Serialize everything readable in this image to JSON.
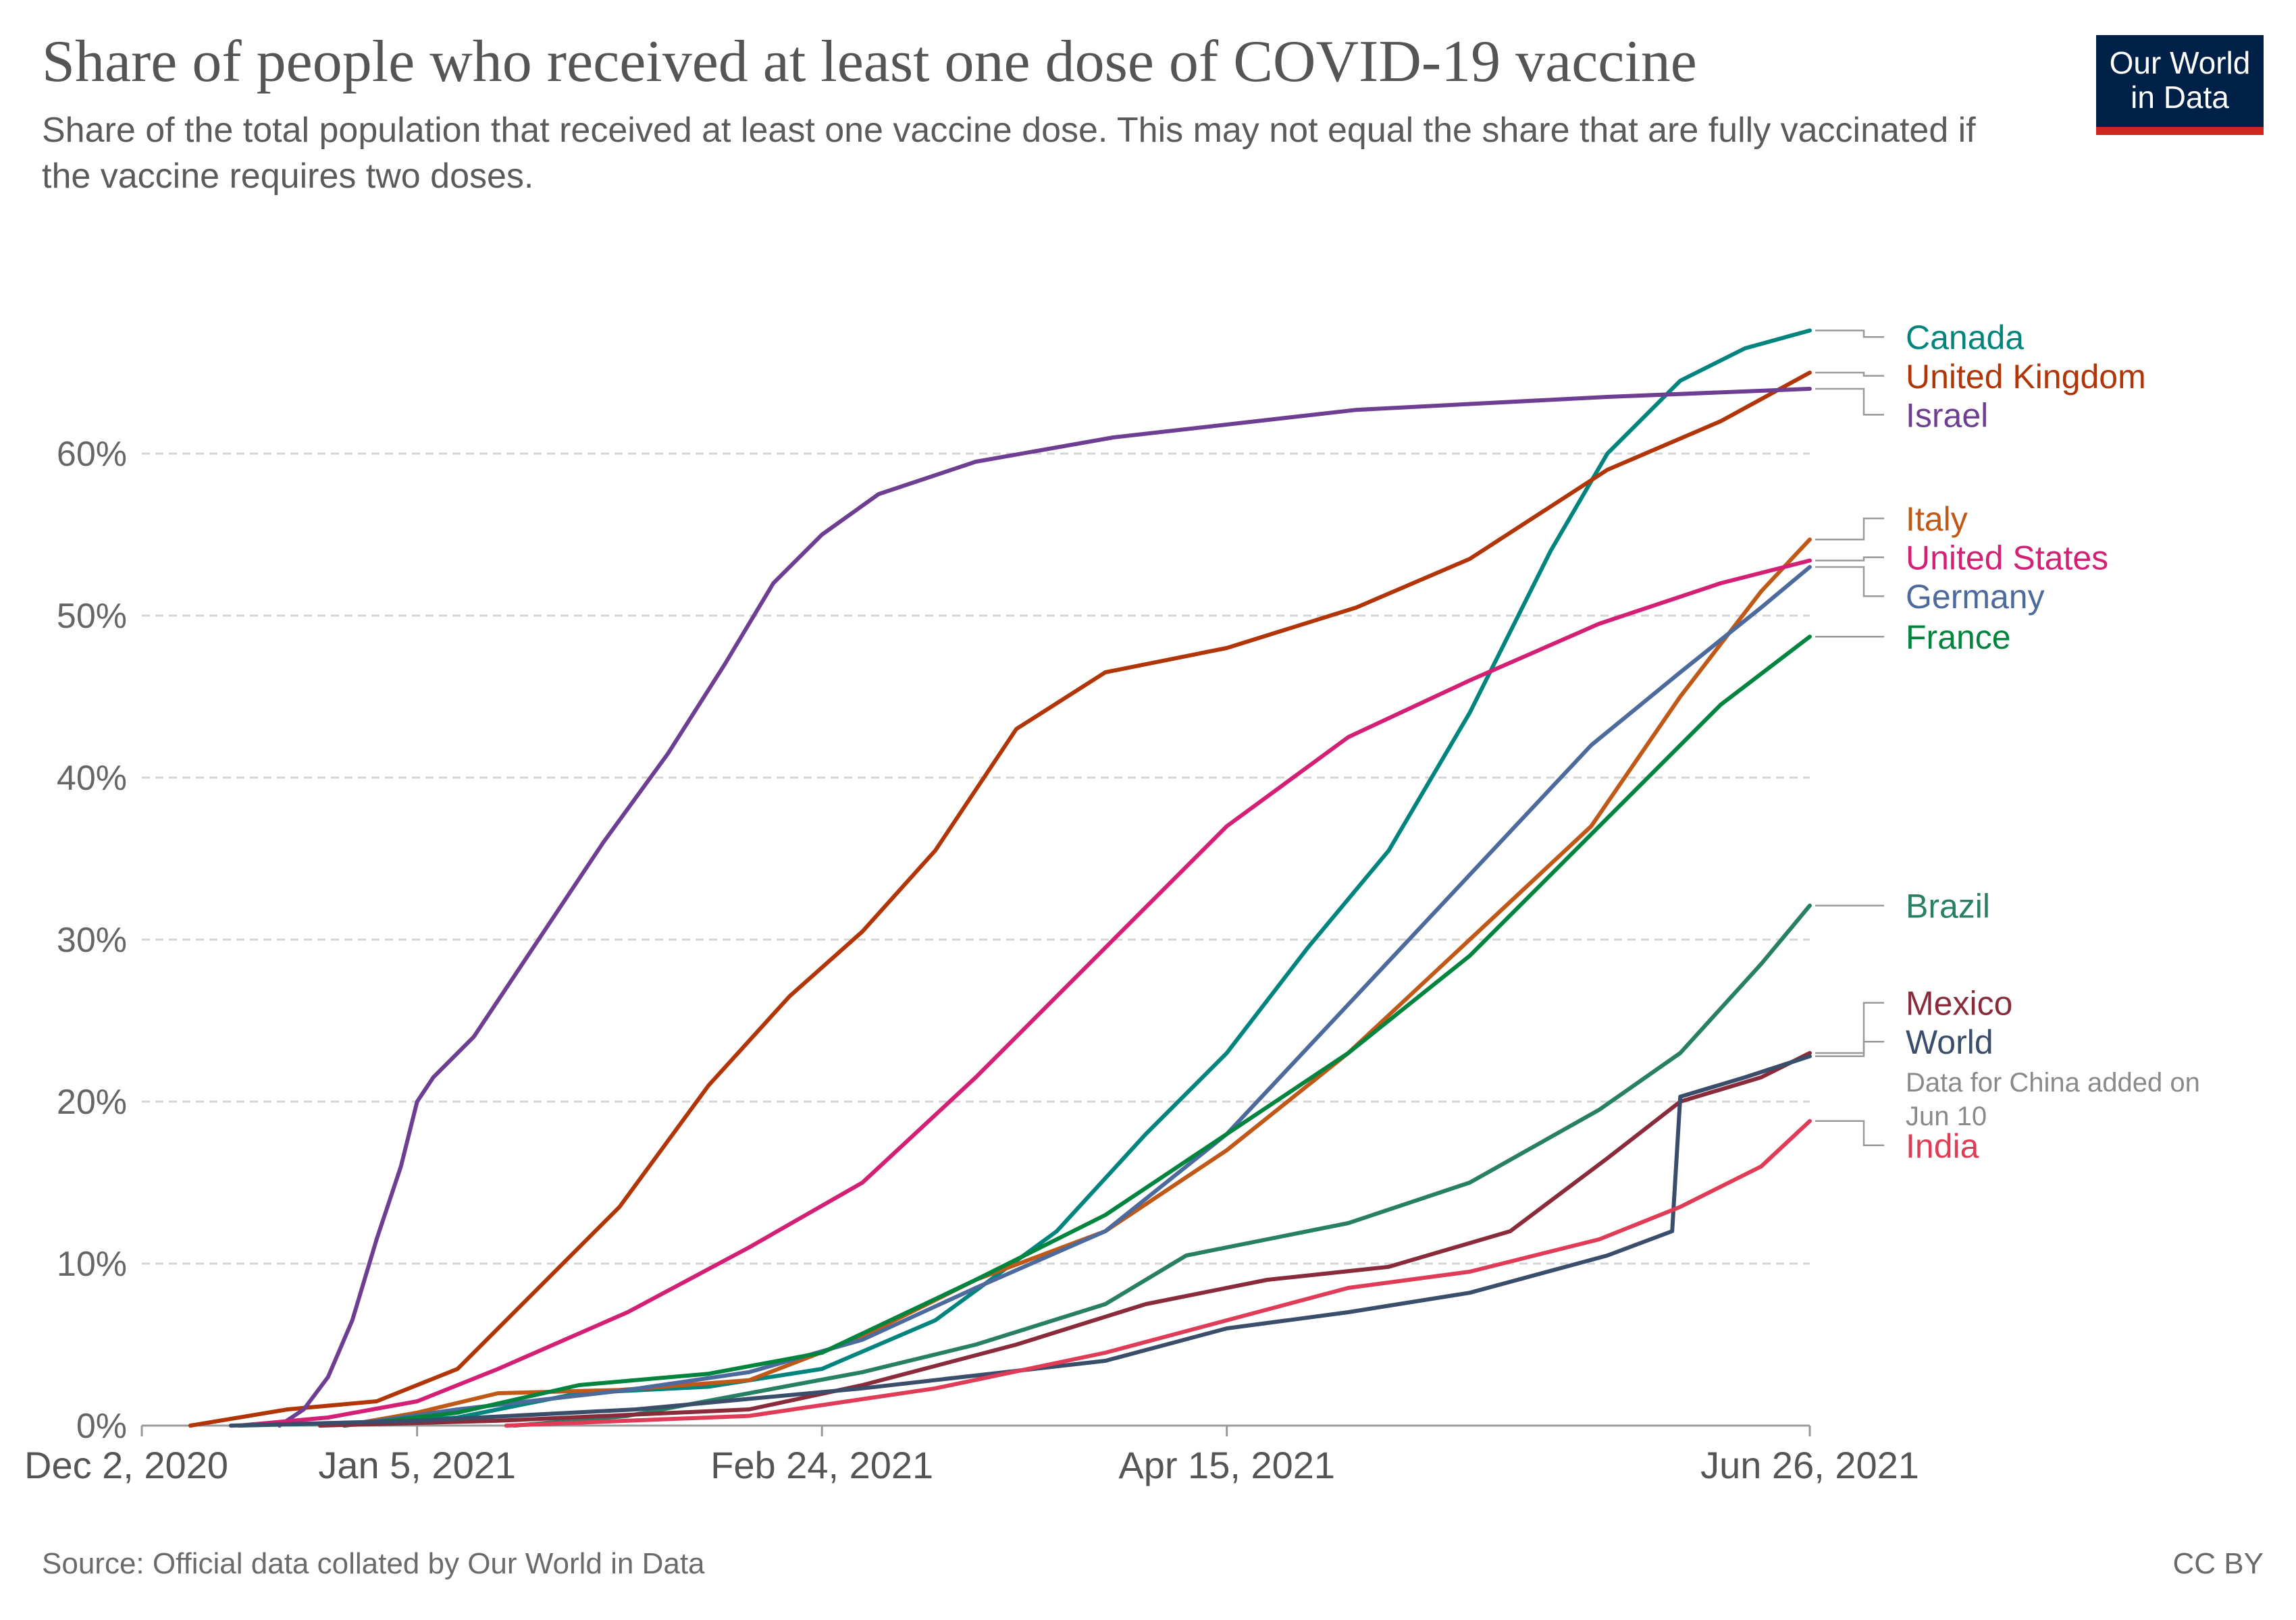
{
  "header": {
    "title": "Share of people who received at least one dose of COVID-19 vaccine",
    "subtitle": "Share of the total population that received at least one vaccine dose. This may not equal the share that are fully vaccinated if the vaccine requires two doses.",
    "logo_line1": "Our World",
    "logo_line2": "in Data"
  },
  "footer": {
    "source": "Source: Official data collated by Our World in Data",
    "license": "CC BY"
  },
  "chart_data": {
    "type": "line",
    "title": "Share of people who received at least one dose of COVID-19 vaccine",
    "x_range": [
      "2020-12-02",
      "2021-06-26"
    ],
    "x_ticks": [
      {
        "date": "2020-12-02",
        "label": "Dec 2, 2020"
      },
      {
        "date": "2021-01-05",
        "label": "Jan 5, 2021"
      },
      {
        "date": "2021-02-24",
        "label": "Feb 24, 2021"
      },
      {
        "date": "2021-04-15",
        "label": "Apr 15, 2021"
      },
      {
        "date": "2021-06-26",
        "label": "Jun 26, 2021"
      }
    ],
    "y_ticks": [
      0,
      10,
      20,
      30,
      40,
      50,
      60
    ],
    "y_tick_labels": [
      "0%",
      "10%",
      "20%",
      "30%",
      "40%",
      "50%",
      "60%"
    ],
    "ylim": [
      0,
      68
    ],
    "grid": "horizontal dashed",
    "legend": "right (line end labels)",
    "annotation": {
      "series": "World",
      "text_line1": "Data for China added on",
      "text_line2": "Jun 10"
    },
    "series": [
      {
        "name": "Canada",
        "color": "#00847e",
        "label_y": 67.2,
        "points": [
          [
            "2020-12-14",
            0
          ],
          [
            "2020-12-31",
            0.2
          ],
          [
            "2021-01-10",
            0.5
          ],
          [
            "2021-01-25",
            2.0
          ],
          [
            "2021-02-10",
            2.4
          ],
          [
            "2021-02-24",
            3.5
          ],
          [
            "2021-03-10",
            6.5
          ],
          [
            "2021-03-25",
            12.0
          ],
          [
            "2021-04-05",
            18.0
          ],
          [
            "2021-04-15",
            23.0
          ],
          [
            "2021-04-25",
            29.5
          ],
          [
            "2021-05-05",
            35.5
          ],
          [
            "2021-05-15",
            44.0
          ],
          [
            "2021-05-25",
            54.0
          ],
          [
            "2021-06-01",
            60.0
          ],
          [
            "2021-06-10",
            64.5
          ],
          [
            "2021-06-18",
            66.5
          ],
          [
            "2021-06-26",
            67.6
          ]
        ]
      },
      {
        "name": "United Kingdom",
        "color": "#c15065",
        "line_color": "#b13507",
        "label_y": 64.8,
        "points": [
          [
            "2020-12-08",
            0
          ],
          [
            "2020-12-20",
            1.0
          ],
          [
            "2020-12-31",
            1.5
          ],
          [
            "2021-01-10",
            3.5
          ],
          [
            "2021-01-20",
            8.5
          ],
          [
            "2021-01-30",
            13.5
          ],
          [
            "2021-02-10",
            21.0
          ],
          [
            "2021-02-20",
            26.5
          ],
          [
            "2021-03-01",
            30.5
          ],
          [
            "2021-03-10",
            35.5
          ],
          [
            "2021-03-20",
            43.0
          ],
          [
            "2021-03-31",
            46.5
          ],
          [
            "2021-04-15",
            48.0
          ],
          [
            "2021-05-01",
            50.5
          ],
          [
            "2021-05-15",
            53.5
          ],
          [
            "2021-06-01",
            59.0
          ],
          [
            "2021-06-15",
            62.0
          ],
          [
            "2021-06-26",
            65.0
          ]
        ]
      },
      {
        "name": "Israel",
        "color": "#6d3e91",
        "label_y": 62.4,
        "points": [
          [
            "2020-12-19",
            0
          ],
          [
            "2020-12-22",
            1.0
          ],
          [
            "2020-12-25",
            3.0
          ],
          [
            "2020-12-28",
            6.5
          ],
          [
            "2020-12-31",
            11.5
          ],
          [
            "2021-01-03",
            16.0
          ],
          [
            "2021-01-05",
            20.0
          ],
          [
            "2021-01-07",
            21.5
          ],
          [
            "2021-01-12",
            24.0
          ],
          [
            "2021-01-20",
            30.0
          ],
          [
            "2021-01-28",
            36.0
          ],
          [
            "2021-02-05",
            41.5
          ],
          [
            "2021-02-12",
            47.0
          ],
          [
            "2021-02-18",
            52.0
          ],
          [
            "2021-02-24",
            55.0
          ],
          [
            "2021-03-03",
            57.5
          ],
          [
            "2021-03-15",
            59.5
          ],
          [
            "2021-04-01",
            61.0
          ],
          [
            "2021-05-01",
            62.7
          ],
          [
            "2021-06-01",
            63.5
          ],
          [
            "2021-06-26",
            64.0
          ]
        ]
      },
      {
        "name": "Italy",
        "color": "#c05917",
        "label_y": 56.0,
        "points": [
          [
            "2020-12-27",
            0
          ],
          [
            "2021-01-05",
            0.8
          ],
          [
            "2021-01-15",
            2.0
          ],
          [
            "2021-01-30",
            2.2
          ],
          [
            "2021-02-15",
            2.8
          ],
          [
            "2021-03-01",
            5.5
          ],
          [
            "2021-03-15",
            9.0
          ],
          [
            "2021-03-31",
            12.0
          ],
          [
            "2021-04-15",
            17.0
          ],
          [
            "2021-04-30",
            23.0
          ],
          [
            "2021-05-15",
            30.0
          ],
          [
            "2021-05-30",
            37.0
          ],
          [
            "2021-06-10",
            45.0
          ],
          [
            "2021-06-20",
            51.5
          ],
          [
            "2021-06-26",
            54.7
          ]
        ]
      },
      {
        "name": "United States",
        "color": "#d31f74",
        "label_y": 53.6,
        "points": [
          [
            "2020-12-14",
            0
          ],
          [
            "2020-12-25",
            0.5
          ],
          [
            "2021-01-05",
            1.5
          ],
          [
            "2021-01-15",
            3.5
          ],
          [
            "2021-01-31",
            7.0
          ],
          [
            "2021-02-15",
            11.0
          ],
          [
            "2021-03-01",
            15.0
          ],
          [
            "2021-03-15",
            21.5
          ],
          [
            "2021-03-31",
            29.5
          ],
          [
            "2021-04-15",
            37.0
          ],
          [
            "2021-04-30",
            42.5
          ],
          [
            "2021-05-15",
            46.0
          ],
          [
            "2021-05-31",
            49.5
          ],
          [
            "2021-06-15",
            52.0
          ],
          [
            "2021-06-26",
            53.4
          ]
        ]
      },
      {
        "name": "Germany",
        "color": "#4c6a9c",
        "label_y": 51.2,
        "points": [
          [
            "2020-12-27",
            0
          ],
          [
            "2021-01-10",
            1.0
          ],
          [
            "2021-01-31",
            2.2
          ],
          [
            "2021-02-15",
            3.3
          ],
          [
            "2021-03-01",
            5.3
          ],
          [
            "2021-03-15",
            8.5
          ],
          [
            "2021-03-31",
            12.0
          ],
          [
            "2021-04-15",
            18.0
          ],
          [
            "2021-04-30",
            26.0
          ],
          [
            "2021-05-15",
            34.0
          ],
          [
            "2021-05-30",
            42.0
          ],
          [
            "2021-06-10",
            46.5
          ],
          [
            "2021-06-20",
            50.5
          ],
          [
            "2021-06-26",
            53.0
          ]
        ]
      },
      {
        "name": "France",
        "color": "#00843e",
        "label_y": 48.7,
        "points": [
          [
            "2020-12-27",
            0
          ],
          [
            "2021-01-10",
            0.8
          ],
          [
            "2021-01-25",
            2.5
          ],
          [
            "2021-02-10",
            3.2
          ],
          [
            "2021-02-24",
            4.5
          ],
          [
            "2021-03-15",
            9.0
          ],
          [
            "2021-03-31",
            13.0
          ],
          [
            "2021-04-15",
            18.0
          ],
          [
            "2021-04-30",
            23.0
          ],
          [
            "2021-05-15",
            29.0
          ],
          [
            "2021-05-31",
            37.0
          ],
          [
            "2021-06-15",
            44.5
          ],
          [
            "2021-06-26",
            48.7
          ]
        ]
      },
      {
        "name": "Brazil",
        "color": "#277f64",
        "label_y": 32.1,
        "points": [
          [
            "2021-01-17",
            0
          ],
          [
            "2021-01-31",
            0.6
          ],
          [
            "2021-02-15",
            2.0
          ],
          [
            "2021-03-01",
            3.3
          ],
          [
            "2021-03-15",
            5.0
          ],
          [
            "2021-03-31",
            7.5
          ],
          [
            "2021-04-10",
            10.5
          ],
          [
            "2021-04-30",
            12.5
          ],
          [
            "2021-05-15",
            15.0
          ],
          [
            "2021-05-31",
            19.5
          ],
          [
            "2021-06-10",
            23.0
          ],
          [
            "2021-06-20",
            28.5
          ],
          [
            "2021-06-26",
            32.1
          ]
        ]
      },
      {
        "name": "Mexico",
        "color": "#8a2b3b",
        "label_y": 26.1,
        "points": [
          [
            "2020-12-24",
            0
          ],
          [
            "2021-01-15",
            0.3
          ],
          [
            "2021-02-15",
            1.0
          ],
          [
            "2021-03-01",
            2.5
          ],
          [
            "2021-03-20",
            5.0
          ],
          [
            "2021-04-05",
            7.5
          ],
          [
            "2021-04-20",
            9.0
          ],
          [
            "2021-05-05",
            9.8
          ],
          [
            "2021-05-20",
            12.0
          ],
          [
            "2021-06-01",
            16.5
          ],
          [
            "2021-06-10",
            20.0
          ],
          [
            "2021-06-20",
            21.5
          ],
          [
            "2021-06-26",
            23.0
          ]
        ]
      },
      {
        "name": "World",
        "color": "#3a4e6b",
        "label_y": 23.7,
        "points": [
          [
            "2020-12-13",
            0
          ],
          [
            "2021-01-05",
            0.3
          ],
          [
            "2021-02-01",
            1.0
          ],
          [
            "2021-03-01",
            2.3
          ],
          [
            "2021-03-31",
            4.0
          ],
          [
            "2021-04-15",
            6.0
          ],
          [
            "2021-04-30",
            7.0
          ],
          [
            "2021-05-15",
            8.2
          ],
          [
            "2021-06-01",
            10.5
          ],
          [
            "2021-06-09",
            12.0
          ],
          [
            "2021-06-10",
            20.3
          ],
          [
            "2021-06-18",
            21.5
          ],
          [
            "2021-06-26",
            22.8
          ]
        ]
      },
      {
        "name": "India",
        "color": "#e03c58",
        "label_y": 17.3,
        "points": [
          [
            "2021-01-16",
            0
          ],
          [
            "2021-02-15",
            0.6
          ],
          [
            "2021-03-10",
            2.3
          ],
          [
            "2021-03-31",
            4.5
          ],
          [
            "2021-04-15",
            6.5
          ],
          [
            "2021-04-30",
            8.5
          ],
          [
            "2021-05-15",
            9.5
          ],
          [
            "2021-05-31",
            11.5
          ],
          [
            "2021-06-10",
            13.5
          ],
          [
            "2021-06-20",
            16.0
          ],
          [
            "2021-06-26",
            18.8
          ]
        ]
      }
    ]
  }
}
